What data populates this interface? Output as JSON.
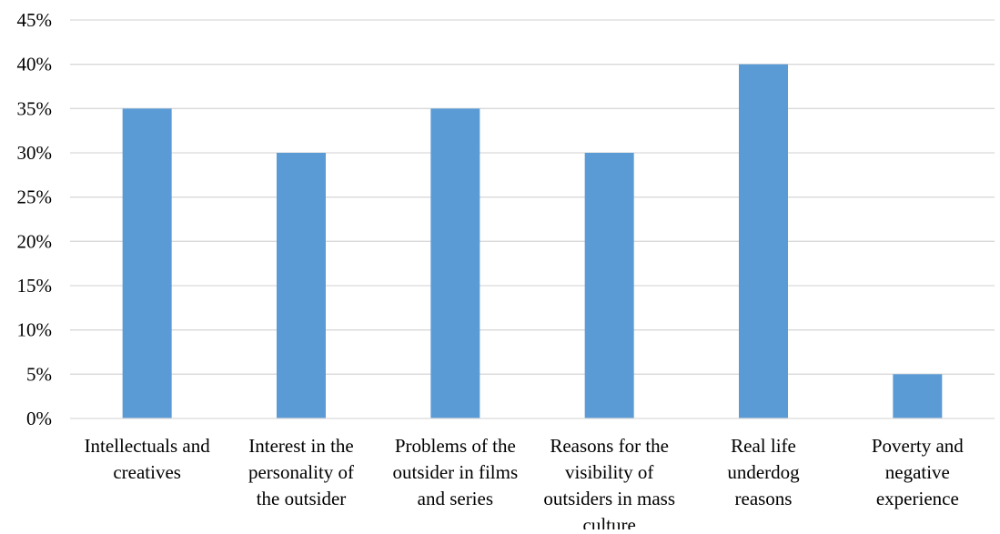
{
  "chart_data": {
    "type": "bar",
    "title": "",
    "xlabel": "",
    "ylabel": "",
    "categories": [
      [
        "Intellectuals and",
        "creatives"
      ],
      [
        "Interest in the",
        "personality of",
        "the outsider"
      ],
      [
        "Problems of the",
        "outsider in films",
        "and series"
      ],
      [
        "Reasons for the",
        "visibility of",
        "outsiders in mass",
        "culture"
      ],
      [
        "Real life",
        "underdog",
        "reasons"
      ],
      [
        "Poverty and",
        "negative",
        "experience"
      ]
    ],
    "values": [
      35,
      30,
      35,
      30,
      40,
      5
    ],
    "ylim": [
      0,
      45
    ],
    "ytick_step": 5,
    "ytick_format": "percent",
    "grid": true,
    "legend": "none",
    "colors": {
      "bar": "#5b9bd5",
      "grid": "#d9d9d9",
      "axis": "#d9d9d9",
      "text": "#000000"
    }
  }
}
